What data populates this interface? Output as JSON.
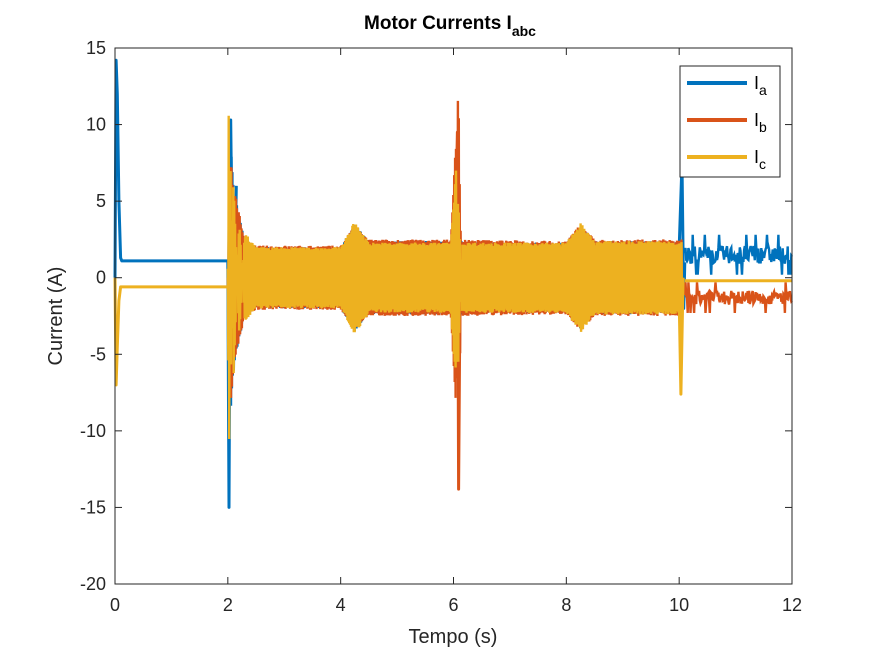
{
  "chart_data": {
    "type": "line",
    "title": "Motor Currents I",
    "title_subscript": "abc",
    "xlabel": "Tempo (s)",
    "ylabel": "Current (A)",
    "xlim": [
      0,
      12
    ],
    "ylim": [
      -20,
      15
    ],
    "xticks": [
      0,
      2,
      4,
      6,
      8,
      10,
      12
    ],
    "yticks": [
      15,
      10,
      5,
      0,
      -5,
      -10,
      -15,
      -20
    ],
    "grid": false,
    "legend_position": "top-right",
    "series": [
      {
        "name": "I",
        "subscript": "a",
        "color": "#0072BD",
        "segments": [
          {
            "kind": "line",
            "points": [
              [
                0,
                0
              ],
              [
                0.02,
                14.2
              ],
              [
                0.04,
                12
              ],
              [
                0.07,
                5
              ],
              [
                0.1,
                1.3
              ],
              [
                0.12,
                1.1
              ],
              [
                2.0,
                1.1
              ]
            ]
          },
          {
            "kind": "band",
            "x": [
              2.0,
              10.05
            ],
            "envelope": [
              [
                2.0,
                1.1
              ],
              [
                2.05,
                9
              ],
              [
                2.1,
                6
              ],
              [
                2.2,
                4
              ],
              [
                2.3,
                2.5
              ],
              [
                2.5,
                2.0
              ],
              [
                4.0,
                2.0
              ],
              [
                4.25,
                3.5
              ],
              [
                4.5,
                2.4
              ],
              [
                5.95,
                2.4
              ],
              [
                6.05,
                3.0
              ],
              [
                6.2,
                2.3
              ],
              [
                8.0,
                2.3
              ],
              [
                8.25,
                3.4
              ],
              [
                8.5,
                2.4
              ],
              [
                10.05,
                2.4
              ]
            ]
          },
          {
            "kind": "spike",
            "points": [
              [
                2.0,
                1.1
              ],
              [
                2.02,
                -15.0
              ],
              [
                2.05,
                10.3
              ],
              [
                2.1,
                -6
              ],
              [
                2.15,
                6
              ]
            ]
          },
          {
            "kind": "spike",
            "points": [
              [
                10.0,
                2.0
              ],
              [
                10.05,
                7.5
              ],
              [
                10.08,
                -2.0
              ],
              [
                10.1,
                1.0
              ]
            ]
          },
          {
            "kind": "noisy",
            "x": [
              10.1,
              12.0
            ],
            "range": [
              0.2,
              2.8
            ]
          }
        ]
      },
      {
        "name": "I",
        "subscript": "b",
        "color": "#D95319",
        "segments": [
          {
            "kind": "band",
            "x": [
              2.0,
              10.05
            ],
            "envelope": [
              [
                2.0,
                0
              ],
              [
                2.05,
                8.2
              ],
              [
                2.1,
                6
              ],
              [
                2.3,
                2.5
              ],
              [
                2.5,
                2.1
              ],
              [
                4.0,
                2.1
              ],
              [
                4.25,
                3.4
              ],
              [
                4.5,
                2.5
              ],
              [
                5.95,
                2.5
              ],
              [
                6.05,
                9.5
              ],
              [
                6.08,
                -13.8
              ],
              [
                6.15,
                2.5
              ],
              [
                8.0,
                2.4
              ],
              [
                8.25,
                3.5
              ],
              [
                8.5,
                2.5
              ],
              [
                10.05,
                2.5
              ]
            ]
          },
          {
            "kind": "spike",
            "points": [
              [
                6.02,
                0
              ],
              [
                6.07,
                9.5
              ],
              [
                6.09,
                -13.8
              ],
              [
                6.12,
                2
              ]
            ]
          },
          {
            "kind": "noisy",
            "x": [
              10.1,
              12.0
            ],
            "range": [
              -2.3,
              -0.3
            ]
          }
        ]
      },
      {
        "name": "I",
        "subscript": "c",
        "color": "#EDB120",
        "segments": [
          {
            "kind": "line",
            "points": [
              [
                0,
                0
              ],
              [
                0.02,
                -7.0
              ],
              [
                0.04,
                -4.5
              ],
              [
                0.07,
                -1.5
              ],
              [
                0.1,
                -0.6
              ],
              [
                2.0,
                -0.6
              ]
            ]
          },
          {
            "kind": "band",
            "x": [
              2.0,
              10.05
            ],
            "envelope": [
              [
                2.0,
                -0.6
              ],
              [
                2.02,
                14.5
              ],
              [
                2.05,
                -8.3
              ],
              [
                2.1,
                7
              ],
              [
                2.2,
                -4
              ],
              [
                2.3,
                3
              ],
              [
                2.5,
                2.0
              ],
              [
                4.0,
                2.0
              ],
              [
                4.25,
                3.7
              ],
              [
                4.5,
                2.3
              ],
              [
                5.95,
                2.3
              ],
              [
                6.05,
                7.3
              ],
              [
                6.08,
                -6.5
              ],
              [
                6.15,
                2.3
              ],
              [
                8.0,
                2.3
              ],
              [
                8.25,
                3.6
              ],
              [
                8.5,
                2.4
              ],
              [
                10.05,
                2.4
              ]
            ]
          },
          {
            "kind": "spike",
            "points": [
              [
                10.0,
                -1.5
              ],
              [
                10.03,
                -7.6
              ],
              [
                10.07,
                0
              ]
            ]
          },
          {
            "kind": "line",
            "points": [
              [
                10.1,
                -0.2
              ],
              [
                12.0,
                -0.2
              ]
            ]
          }
        ]
      }
    ]
  }
}
